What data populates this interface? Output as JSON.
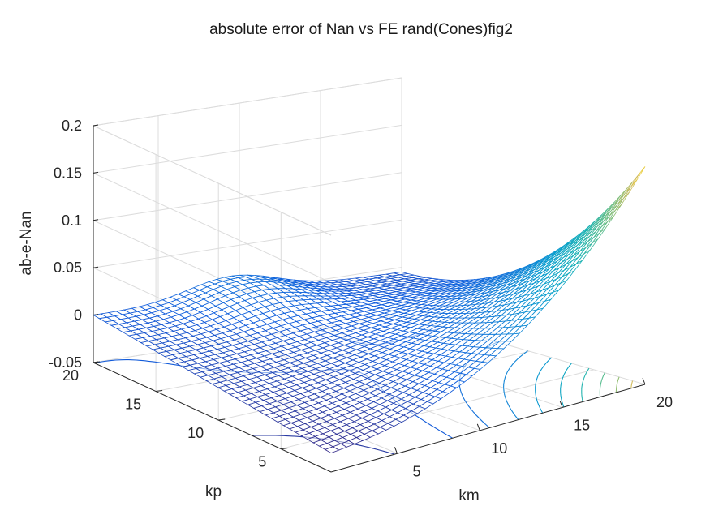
{
  "chart_data": {
    "type": "surface-mesh-contour",
    "title": "absolute error of Nan vs FE rand(Cones)fig2",
    "xlabel": "km",
    "ylabel": "kp",
    "zlabel": "ab-e-Nan",
    "xlim": [
      1,
      20
    ],
    "ylim": [
      1,
      20
    ],
    "zlim": [
      -0.05,
      0.2
    ],
    "x_ticks": [
      "5",
      "10",
      "15",
      "20"
    ],
    "y_ticks": [
      "5",
      "10",
      "15",
      "20"
    ],
    "z_ticks": [
      "-0.05",
      "0",
      "0.05",
      "0.1",
      "0.15",
      "0.2"
    ],
    "corner_values": [
      {
        "km": 1,
        "kp": 20,
        "z": 0.0
      },
      {
        "km": 20,
        "kp": 20,
        "z": -0.005
      },
      {
        "km": 1,
        "kp": 1,
        "z": -0.03
      },
      {
        "km": 20,
        "kp": 1,
        "z": 0.18
      }
    ],
    "colormap": "parula",
    "grid": true,
    "contour_projection": "floor"
  }
}
